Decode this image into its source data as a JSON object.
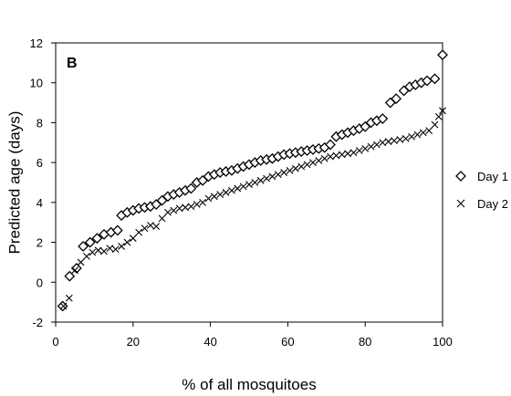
{
  "chart_data": {
    "type": "scatter",
    "panel_label": "B",
    "xlabel": "% of all mosquitoes",
    "ylabel": "Predicted age (days)",
    "xlim": [
      0,
      100
    ],
    "ylim": [
      -2,
      12
    ],
    "xticks": [
      0,
      20,
      40,
      60,
      80,
      100
    ],
    "yticks": [
      -2,
      0,
      2,
      4,
      6,
      8,
      10,
      12
    ],
    "grid": false,
    "legend_position": "right",
    "series": [
      {
        "name": "Day 1",
        "marker": "diamond",
        "points": [
          [
            1.8,
            -1.2
          ],
          [
            3.6,
            0.3
          ],
          [
            5.4,
            0.7
          ],
          [
            7.1,
            1.8
          ],
          [
            8.9,
            2.0
          ],
          [
            10.7,
            2.2
          ],
          [
            12.5,
            2.4
          ],
          [
            14.3,
            2.5
          ],
          [
            16.0,
            2.6
          ],
          [
            17.0,
            3.35
          ],
          [
            18.5,
            3.5
          ],
          [
            20.0,
            3.6
          ],
          [
            21.5,
            3.7
          ],
          [
            23.0,
            3.75
          ],
          [
            24.5,
            3.8
          ],
          [
            26.0,
            3.9
          ],
          [
            27.5,
            4.1
          ],
          [
            29.0,
            4.3
          ],
          [
            30.5,
            4.4
          ],
          [
            32.0,
            4.5
          ],
          [
            33.5,
            4.6
          ],
          [
            35.0,
            4.7
          ],
          [
            36.5,
            5.0
          ],
          [
            38.0,
            5.1
          ],
          [
            39.5,
            5.3
          ],
          [
            41.0,
            5.4
          ],
          [
            42.5,
            5.5
          ],
          [
            44.0,
            5.55
          ],
          [
            45.5,
            5.6
          ],
          [
            47.0,
            5.7
          ],
          [
            48.5,
            5.8
          ],
          [
            50.0,
            5.9
          ],
          [
            51.5,
            6.0
          ],
          [
            53.0,
            6.1
          ],
          [
            54.5,
            6.15
          ],
          [
            56.0,
            6.2
          ],
          [
            57.5,
            6.3
          ],
          [
            59.0,
            6.4
          ],
          [
            60.5,
            6.45
          ],
          [
            62.0,
            6.5
          ],
          [
            63.5,
            6.55
          ],
          [
            65.0,
            6.6
          ],
          [
            66.5,
            6.65
          ],
          [
            68.0,
            6.7
          ],
          [
            69.5,
            6.75
          ],
          [
            71.0,
            6.9
          ],
          [
            72.5,
            7.3
          ],
          [
            74.0,
            7.4
          ],
          [
            75.5,
            7.5
          ],
          [
            77.0,
            7.6
          ],
          [
            78.5,
            7.7
          ],
          [
            80.0,
            7.8
          ],
          [
            81.5,
            8.0
          ],
          [
            83.0,
            8.1
          ],
          [
            84.5,
            8.2
          ],
          [
            86.5,
            9.0
          ],
          [
            88.0,
            9.2
          ],
          [
            90.0,
            9.6
          ],
          [
            91.5,
            9.8
          ],
          [
            93.0,
            9.9
          ],
          [
            94.5,
            10.0
          ],
          [
            96.0,
            10.1
          ],
          [
            98.0,
            10.2
          ],
          [
            100.0,
            11.4
          ]
        ]
      },
      {
        "name": "Day 2",
        "marker": "x",
        "points": [
          [
            2.0,
            -1.2
          ],
          [
            3.5,
            -0.8
          ],
          [
            5.0,
            0.6
          ],
          [
            6.5,
            1.0
          ],
          [
            8.0,
            1.3
          ],
          [
            9.5,
            1.5
          ],
          [
            11.0,
            1.6
          ],
          [
            12.5,
            1.55
          ],
          [
            14.0,
            1.7
          ],
          [
            15.5,
            1.65
          ],
          [
            17.0,
            1.8
          ],
          [
            18.5,
            2.0
          ],
          [
            20.0,
            2.2
          ],
          [
            21.5,
            2.5
          ],
          [
            23.0,
            2.7
          ],
          [
            24.5,
            2.85
          ],
          [
            26.0,
            2.8
          ],
          [
            27.5,
            3.2
          ],
          [
            29.0,
            3.5
          ],
          [
            30.5,
            3.6
          ],
          [
            32.0,
            3.7
          ],
          [
            33.5,
            3.75
          ],
          [
            35.0,
            3.8
          ],
          [
            36.5,
            3.9
          ],
          [
            38.0,
            4.0
          ],
          [
            39.5,
            4.2
          ],
          [
            41.0,
            4.3
          ],
          [
            42.5,
            4.4
          ],
          [
            44.0,
            4.5
          ],
          [
            45.5,
            4.6
          ],
          [
            47.0,
            4.7
          ],
          [
            48.5,
            4.8
          ],
          [
            50.0,
            4.9
          ],
          [
            51.5,
            5.0
          ],
          [
            53.0,
            5.1
          ],
          [
            54.5,
            5.2
          ],
          [
            56.0,
            5.3
          ],
          [
            57.5,
            5.4
          ],
          [
            59.0,
            5.5
          ],
          [
            60.5,
            5.6
          ],
          [
            62.0,
            5.7
          ],
          [
            63.5,
            5.8
          ],
          [
            65.0,
            5.9
          ],
          [
            66.5,
            6.0
          ],
          [
            68.0,
            6.1
          ],
          [
            69.5,
            6.2
          ],
          [
            71.0,
            6.3
          ],
          [
            72.5,
            6.35
          ],
          [
            74.0,
            6.4
          ],
          [
            75.5,
            6.45
          ],
          [
            77.0,
            6.5
          ],
          [
            78.5,
            6.6
          ],
          [
            80.0,
            6.7
          ],
          [
            81.5,
            6.8
          ],
          [
            83.0,
            6.9
          ],
          [
            84.5,
            7.0
          ],
          [
            86.0,
            7.05
          ],
          [
            87.5,
            7.1
          ],
          [
            89.0,
            7.15
          ],
          [
            90.5,
            7.2
          ],
          [
            92.0,
            7.3
          ],
          [
            93.5,
            7.4
          ],
          [
            95.0,
            7.5
          ],
          [
            96.5,
            7.6
          ],
          [
            98.0,
            7.9
          ],
          [
            99.0,
            8.3
          ],
          [
            100.0,
            8.6
          ]
        ]
      }
    ]
  }
}
